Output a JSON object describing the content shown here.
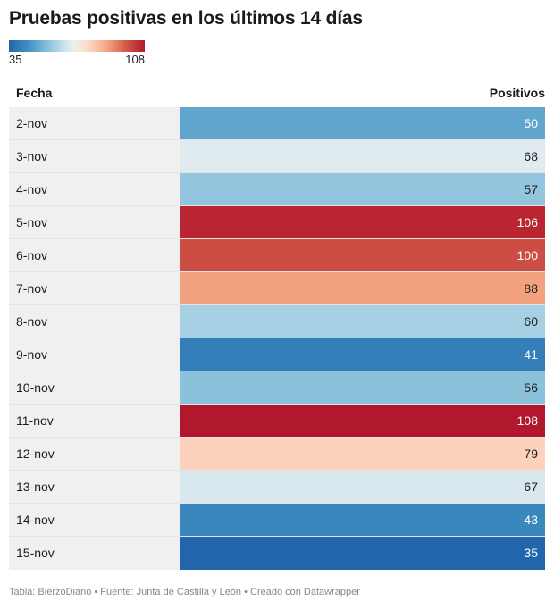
{
  "title": "Pruebas positivas en los últimos 14 días",
  "legend": {
    "min_label": "35",
    "max_label": "108"
  },
  "colors": {
    "scale_low": "#2166ac",
    "scale_mid": "#f7f7f7",
    "scale_high": "#b2182b",
    "date_cell_bg": "#f0f0f0"
  },
  "table": {
    "headers": {
      "fecha": "Fecha",
      "positivos": "Positivos"
    }
  },
  "chart_data": {
    "type": "table",
    "title": "Pruebas positivas en los últimos 14 días",
    "columns": [
      "Fecha",
      "Positivos"
    ],
    "color_scale": {
      "min": 35,
      "max": 108
    },
    "rows": [
      {
        "fecha": "2-nov",
        "positivos": 50
      },
      {
        "fecha": "3-nov",
        "positivos": 68
      },
      {
        "fecha": "4-nov",
        "positivos": 57
      },
      {
        "fecha": "5-nov",
        "positivos": 106
      },
      {
        "fecha": "6-nov",
        "positivos": 100
      },
      {
        "fecha": "7-nov",
        "positivos": 88
      },
      {
        "fecha": "8-nov",
        "positivos": 60
      },
      {
        "fecha": "9-nov",
        "positivos": 41
      },
      {
        "fecha": "10-nov",
        "positivos": 56
      },
      {
        "fecha": "11-nov",
        "positivos": 108
      },
      {
        "fecha": "12-nov",
        "positivos": 79
      },
      {
        "fecha": "13-nov",
        "positivos": 67
      },
      {
        "fecha": "14-nov",
        "positivos": 43
      },
      {
        "fecha": "15-nov",
        "positivos": 35
      }
    ]
  },
  "footer": "Tabla: BierzoDiario • Fuente: Junta de Castilla y León • Creado con Datawrapper"
}
